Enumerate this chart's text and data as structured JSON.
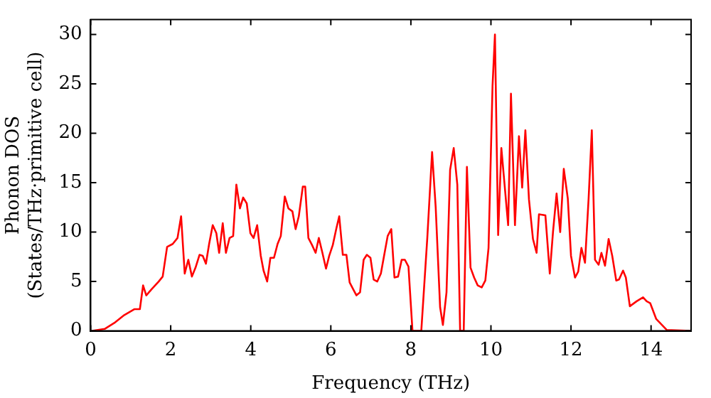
{
  "chart_data": {
    "type": "line",
    "xlabel": "Frequency (THz)",
    "ylabel": "Phonon DOS\n(States/THz·primitive cell)",
    "xlim": [
      0,
      15
    ],
    "ylim": [
      0,
      31.5
    ],
    "xticks": [
      0,
      2,
      4,
      6,
      8,
      10,
      12,
      14
    ],
    "yticks": [
      0,
      5,
      10,
      15,
      20,
      25,
      30
    ],
    "grid": false,
    "legend": false,
    "marker": "none",
    "line_style": "solid",
    "series": [
      {
        "color": "#ff0000",
        "x": [
          0.04,
          0.35,
          0.59,
          0.84,
          1.09,
          1.23,
          1.31,
          1.39,
          1.52,
          1.7,
          1.8,
          1.91,
          2.05,
          2.17,
          2.26,
          2.35,
          2.44,
          2.53,
          2.62,
          2.72,
          2.8,
          2.88,
          2.96,
          3.05,
          3.14,
          3.21,
          3.3,
          3.38,
          3.47,
          3.56,
          3.64,
          3.73,
          3.81,
          3.9,
          3.99,
          4.07,
          4.16,
          4.25,
          4.32,
          4.41,
          4.49,
          4.58,
          4.67,
          4.75,
          4.85,
          4.94,
          5.04,
          5.12,
          5.2,
          5.3,
          5.36,
          5.44,
          5.53,
          5.62,
          5.7,
          5.79,
          5.88,
          5.96,
          6.05,
          6.14,
          6.21,
          6.3,
          6.39,
          6.47,
          6.56,
          6.64,
          6.73,
          6.82,
          6.9,
          6.99,
          7.07,
          7.16,
          7.25,
          7.33,
          7.42,
          7.51,
          7.59,
          7.68,
          7.77,
          7.85,
          7.94,
          8.04,
          8.26,
          8.41,
          8.53,
          8.62,
          8.73,
          8.8,
          8.89,
          8.98,
          9.07,
          9.16,
          9.23,
          9.32,
          9.4,
          9.49,
          9.58,
          9.67,
          9.77,
          9.86,
          9.94,
          10.04,
          10.1,
          10.18,
          10.26,
          10.43,
          10.5,
          10.6,
          10.7,
          10.78,
          10.86,
          10.95,
          11.05,
          11.14,
          11.2,
          11.36,
          11.47,
          11.55,
          11.64,
          11.73,
          11.82,
          11.92,
          12.0,
          12.1,
          12.18,
          12.26,
          12.35,
          12.44,
          12.52,
          12.6,
          12.69,
          12.76,
          12.85,
          12.94,
          13.03,
          13.13,
          13.2,
          13.3,
          13.37,
          13.47,
          13.64,
          13.8,
          13.89,
          13.98,
          14.13,
          14.39,
          15
        ],
        "values": [
          0,
          0.2,
          0.8,
          1.6,
          2.2,
          2.2,
          4.6,
          3.6,
          4.2,
          5,
          5.5,
          8.5,
          8.8,
          9.4,
          11.6,
          5.8,
          7.2,
          5.5,
          6.4,
          7.7,
          7.6,
          6.8,
          8.8,
          10.7,
          9.9,
          7.9,
          10.9,
          7.9,
          9.4,
          9.6,
          14.8,
          12.4,
          13.5,
          12.9,
          9.9,
          9.4,
          10.7,
          7.6,
          6.1,
          5,
          7.4,
          7.4,
          8.8,
          9.6,
          13.6,
          12.4,
          12.1,
          10.3,
          11.6,
          14.6,
          14.6,
          9.4,
          8.7,
          7.9,
          9.4,
          7.9,
          6.3,
          7.6,
          8.7,
          10.4,
          11.6,
          7.7,
          7.7,
          4.9,
          4.2,
          3.6,
          3.9,
          7.2,
          7.7,
          7.4,
          5.2,
          5,
          5.8,
          7.6,
          9.6,
          10.3,
          5.4,
          5.5,
          7.2,
          7.2,
          6.5,
          0,
          0,
          9.4,
          18.1,
          12.5,
          2.4,
          0.6,
          3.9,
          16.3,
          18.5,
          14.8,
          0,
          0,
          16.6,
          6.4,
          5.4,
          4.6,
          4.4,
          5.1,
          8.4,
          24.8,
          30,
          9.7,
          18.5,
          10.7,
          24,
          10.7,
          19.7,
          14.5,
          20.3,
          13.3,
          9.3,
          7.9,
          11.8,
          11.7,
          5.8,
          10,
          13.9,
          10,
          16.4,
          13.4,
          7.6,
          5.4,
          6,
          8.4,
          6.9,
          13.4,
          20.3,
          7.2,
          6.7,
          7.9,
          6.6,
          9.3,
          7.6,
          5.1,
          5.2,
          6.1,
          5.4,
          2.5,
          3,
          3.4,
          3,
          2.8,
          1.2,
          0.1,
          0
        ]
      }
    ]
  }
}
